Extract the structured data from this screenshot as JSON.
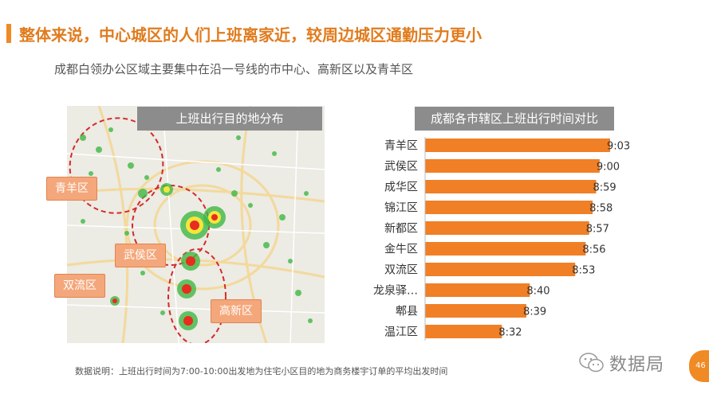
{
  "header": {
    "title": "整体来说，中心城区的人们上班离家近，较周边城区通勤压力更小",
    "subtitle": "成都白领办公区域主要集中在沿一号线的市中心、高新区以及青羊区"
  },
  "map_panel": {
    "title": "上班出行目的地分布",
    "tags": [
      "青羊区",
      "武侯区",
      "双流区",
      "高新区"
    ]
  },
  "chart_data": {
    "type": "bar",
    "orientation": "horizontal",
    "title": "成都各市辖区上班出行时间对比",
    "categories": [
      "青羊区",
      "武侯区",
      "成华区",
      "锦江区",
      "新都区",
      "金牛区",
      "双流区",
      "龙泉驿…",
      "郫县",
      "温江区"
    ],
    "values": [
      "9:03",
      "9:00",
      "8:59",
      "8:58",
      "8:57",
      "8:56",
      "8:53",
      "8:40",
      "8:39",
      "8:32"
    ],
    "values_minutes": [
      543,
      540,
      539,
      538,
      537,
      536,
      533,
      520,
      519,
      512
    ],
    "bar_color": "#f07f26",
    "grid": false,
    "legend": "none"
  },
  "footer": {
    "note": "数据说明：上班出行时间为7:00-10:00出发地为住宅小区目的地为商务楼宇订单的平均出发时间",
    "brand": "数据局",
    "page_number": "46"
  },
  "colors": {
    "accent": "#f08a24",
    "title_bar": "#8c8c8c"
  }
}
